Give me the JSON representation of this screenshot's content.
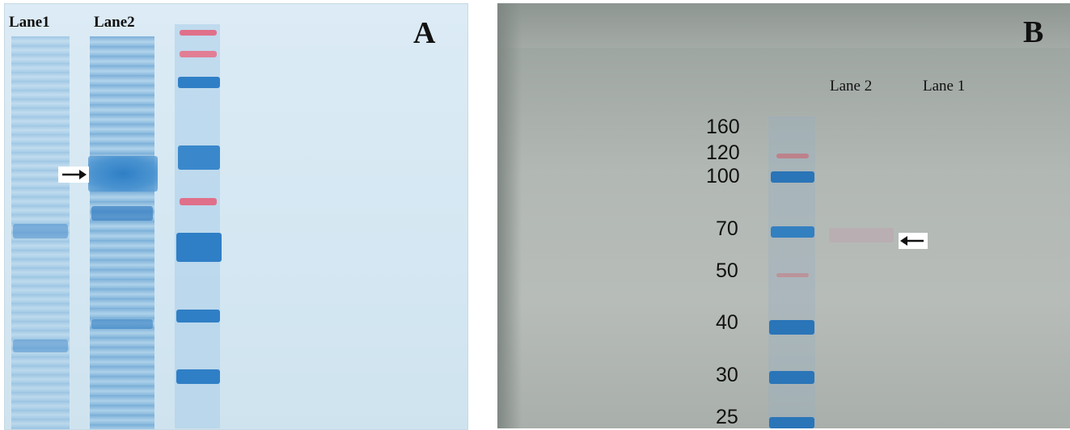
{
  "panel_a": {
    "letter": "A",
    "lane_labels": [
      "Lane1",
      "Lane2"
    ]
  },
  "panel_b": {
    "letter": "B",
    "lane_labels": [
      "Lane 2",
      "Lane 1"
    ],
    "marker_weights": [
      "160",
      "120",
      "100",
      "70",
      "50",
      "40",
      "30",
      "25"
    ]
  },
  "colors": {
    "gel_background": "#d4e7f2",
    "blue_band": "#2f7fc6",
    "pink_band": "#e0708a",
    "membrane": "#b4bab6"
  }
}
